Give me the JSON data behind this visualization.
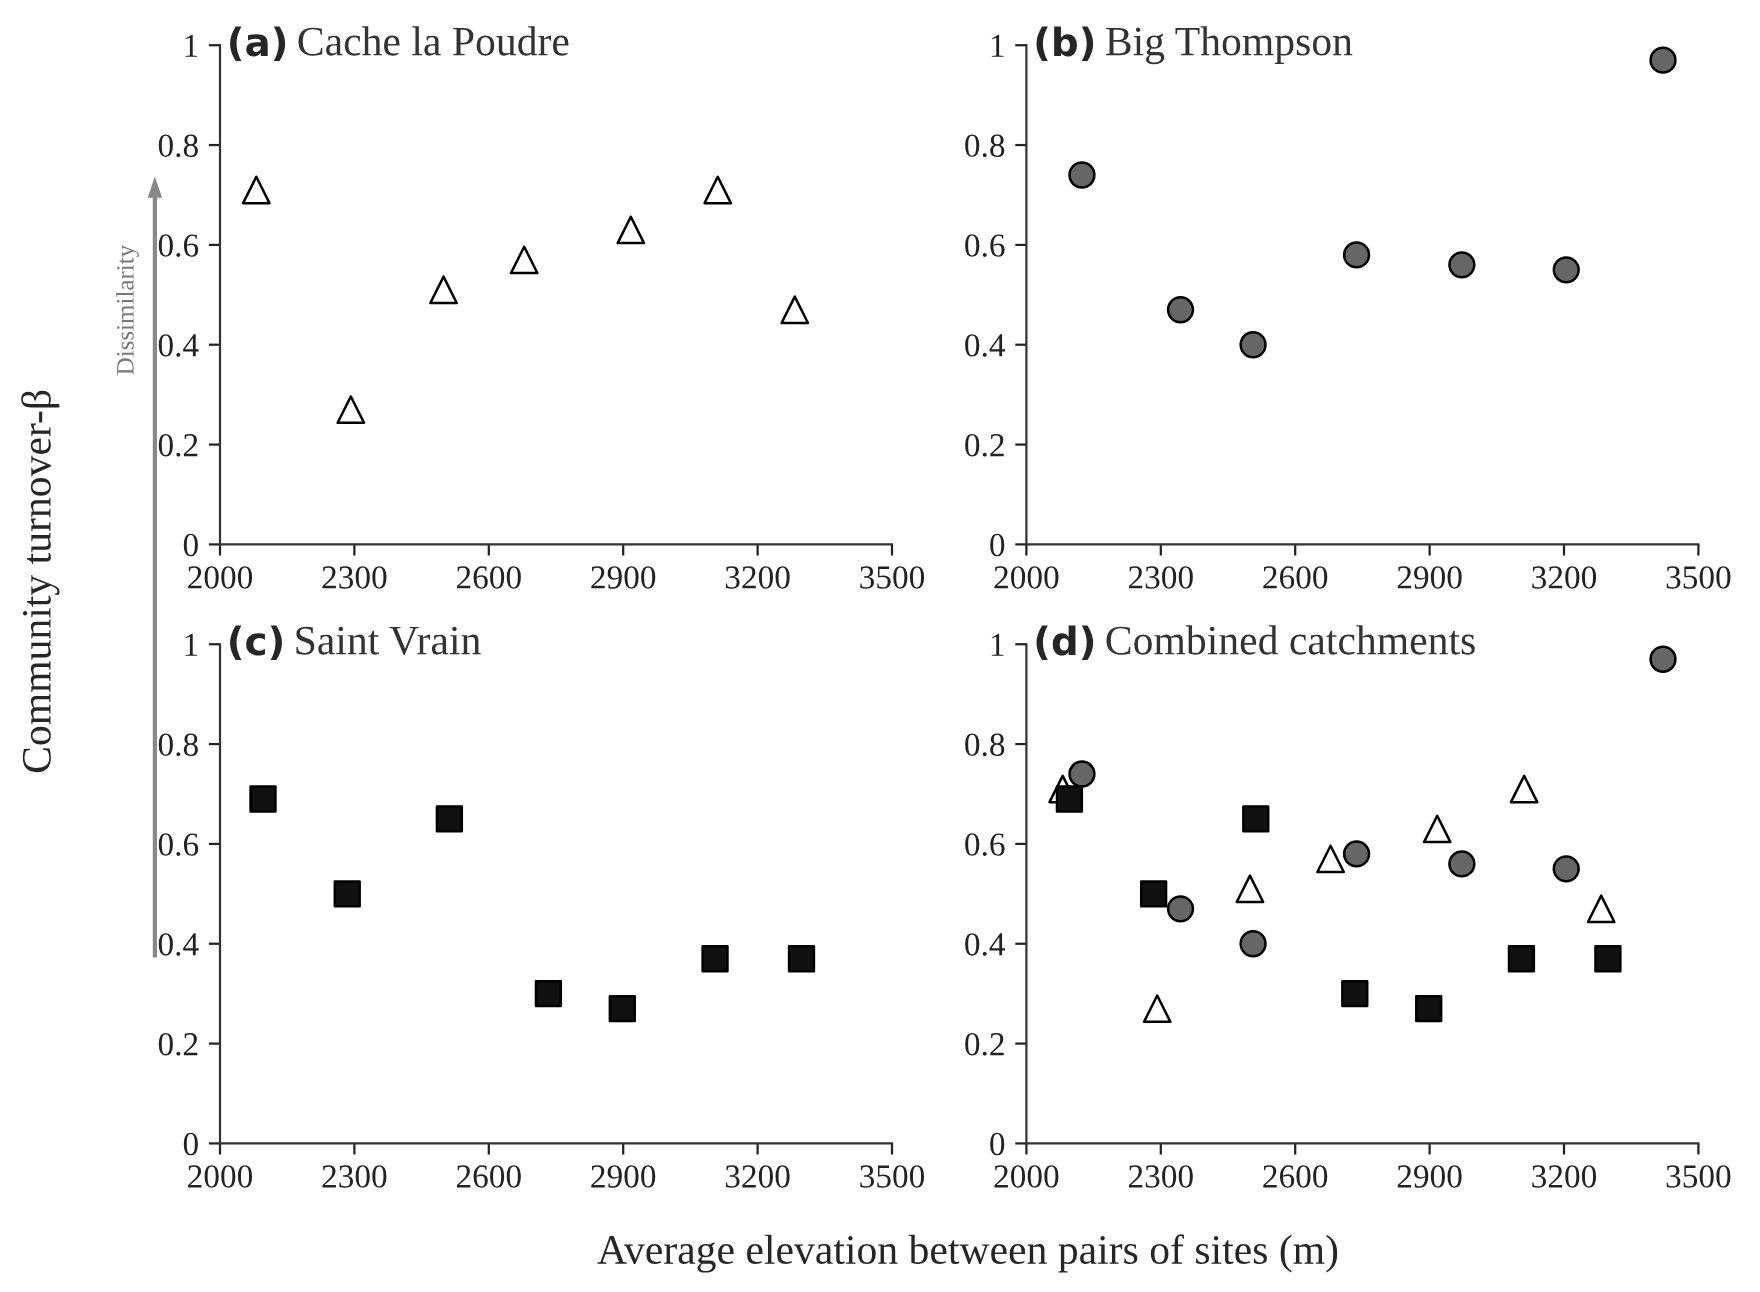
{
  "chart_data": [
    {
      "type": "scatter",
      "title": "(a)",
      "subtitle": "Cache la Poudre",
      "ylabel": "Community turnover-β",
      "annotations": [
        "Dissimilarity"
      ],
      "xlim": [
        2000,
        3500
      ],
      "xticks": [
        2000,
        2300,
        2600,
        2900,
        3200,
        3500
      ],
      "ylim": [
        0,
        1
      ],
      "yticks": [
        0,
        0.2,
        0.4,
        0.6,
        0.8,
        1
      ],
      "grid": false,
      "legend": false,
      "series": [
        {
          "color": "#ffffff",
          "marker": "triangle",
          "x": [
            2081,
            2292,
            2499,
            2679,
            2917,
            3111,
            3283
          ],
          "values": [
            0.71,
            0.27,
            0.51,
            0.57,
            0.63,
            0.71,
            0.47
          ]
        }
      ]
    },
    {
      "type": "scatter",
      "title": "(b)",
      "subtitle": "Big Thompson",
      "xlim": [
        2000,
        3500
      ],
      "xticks": [
        2000,
        2300,
        2600,
        2900,
        3200,
        3500
      ],
      "ylim": [
        0,
        1
      ],
      "yticks": [
        0,
        0.2,
        0.4,
        0.6,
        0.8,
        1
      ],
      "grid": false,
      "legend": false,
      "series": [
        {
          "color": "#666666",
          "marker": "circle",
          "x": [
            2124,
            2344,
            2506,
            2737,
            2972,
            3205,
            3421
          ],
          "values": [
            0.74,
            0.47,
            0.4,
            0.58,
            0.56,
            0.55,
            0.97
          ]
        }
      ]
    },
    {
      "type": "scatter",
      "title": "(c)",
      "subtitle": "Saint Vrain",
      "xlabel": "Average elevation between pairs of sites (m)",
      "xlim": [
        2000,
        3500
      ],
      "xticks": [
        2000,
        2300,
        2600,
        2900,
        3200,
        3500
      ],
      "ylim": [
        0,
        1
      ],
      "yticks": [
        0,
        0.2,
        0.4,
        0.6,
        0.8,
        1
      ],
      "grid": false,
      "legend": false,
      "series": [
        {
          "color": "#111111",
          "marker": "square",
          "x": [
            2096,
            2284,
            2512,
            2733,
            2898,
            3105,
            3298
          ],
          "values": [
            0.69,
            0.5,
            0.65,
            0.3,
            0.27,
            0.37,
            0.37
          ]
        }
      ]
    },
    {
      "type": "scatter",
      "title": "(d)",
      "subtitle": "Combined catchments",
      "xlim": [
        2000,
        3500
      ],
      "xticks": [
        2000,
        2300,
        2600,
        2900,
        3200,
        3500
      ],
      "ylim": [
        0,
        1
      ],
      "yticks": [
        0,
        0.2,
        0.4,
        0.6,
        0.8,
        1
      ],
      "grid": false,
      "legend": false,
      "series": [
        {
          "color": "#ffffff",
          "marker": "triangle",
          "x": [
            2081,
            2292,
            2499,
            2679,
            2917,
            3111,
            3283
          ],
          "values": [
            0.71,
            0.27,
            0.51,
            0.57,
            0.63,
            0.71,
            0.47
          ]
        },
        {
          "color": "#666666",
          "marker": "circle",
          "x": [
            2124,
            2344,
            2506,
            2737,
            2972,
            3205,
            3421
          ],
          "values": [
            0.74,
            0.47,
            0.4,
            0.58,
            0.56,
            0.55,
            0.97
          ]
        },
        {
          "color": "#111111",
          "marker": "square",
          "x": [
            2096,
            2284,
            2512,
            2733,
            2898,
            3105,
            3298
          ],
          "values": [
            0.69,
            0.5,
            0.65,
            0.3,
            0.27,
            0.37,
            0.37
          ]
        }
      ]
    }
  ]
}
